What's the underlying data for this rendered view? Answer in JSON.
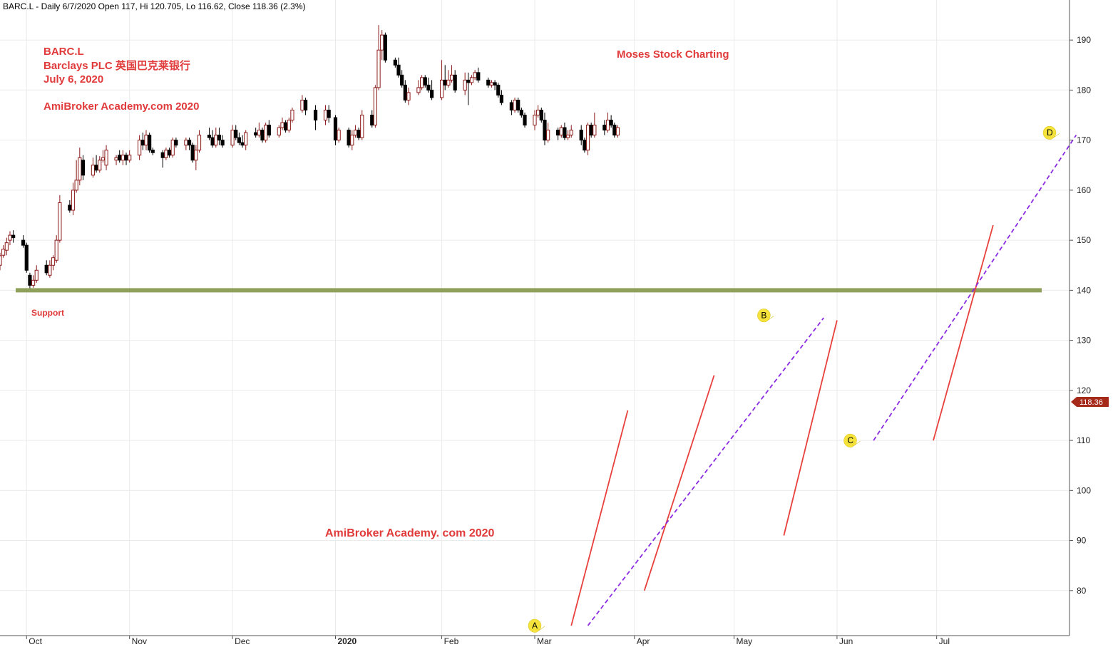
{
  "header": {
    "text": "BARC.L - Daily 6/7/2020 Open 117, Hi 120.705, Lo 116.62, Close 118.36 (2.3%)"
  },
  "annotations": {
    "symbol": "BARC.L",
    "company": "Barclays PLC 英国巴克莱银行",
    "date": "July 6, 2020",
    "brand_top": "AmiBroker Academy.com  2020",
    "center_title": "Moses Stock Charting",
    "brand_bottom": "AmiBroker Academy. com  2020",
    "support_label": "Support"
  },
  "colors": {
    "up_candle": "#8b1a1a",
    "down_candle": "#000000",
    "support_line": "#8fa05a",
    "trend_red": "#e8403c",
    "trend_purple": "#8a2be2",
    "annotation_red": "#e03a3a",
    "marker_fill": "#f5e23a",
    "price_tag": "#a52a1a"
  },
  "chart_data": {
    "type": "candlestick",
    "title": "",
    "xlabel": "",
    "ylabel": "",
    "ylim": [
      71,
      198
    ],
    "y_ticks": [
      80,
      90,
      100,
      110,
      120,
      130,
      140,
      150,
      160,
      170,
      180,
      190
    ],
    "x_months": [
      {
        "label": "Oct",
        "date": "2019-10-01"
      },
      {
        "label": "Nov",
        "date": "2019-11-01"
      },
      {
        "label": "Dec",
        "date": "2019-12-02"
      },
      {
        "label": "2020",
        "date": "2020-01-02"
      },
      {
        "label": "Feb",
        "date": "2020-02-03"
      },
      {
        "label": "Mar",
        "date": "2020-03-02"
      },
      {
        "label": "Apr",
        "date": "2020-04-01"
      },
      {
        "label": "May",
        "date": "2020-05-01"
      },
      {
        "label": "Jun",
        "date": "2020-06-01"
      },
      {
        "label": "Jul",
        "date": "2020-07-01"
      }
    ],
    "last_close": "118.36",
    "support": {
      "value": 140,
      "label": "Support"
    },
    "candles": [
      [
        "2019-09-23",
        145.0,
        146.9,
        144.0,
        147.5
      ],
      [
        "2019-09-24",
        147.0,
        148.2,
        146.5,
        149.0
      ],
      [
        "2019-09-25",
        148.0,
        149.5,
        147.0,
        150.5
      ],
      [
        "2019-09-26",
        150.0,
        151.0,
        149.0,
        151.8
      ],
      [
        "2019-09-27",
        151.0,
        150.5,
        149.5,
        152.0
      ],
      [
        "2019-09-30",
        150.0,
        149.0,
        148.5,
        151.0
      ],
      [
        "2019-10-01",
        149.0,
        144.0,
        143.5,
        149.5
      ],
      [
        "2019-10-02",
        143.0,
        141.0,
        140.0,
        143.5
      ],
      [
        "2019-10-03",
        141.0,
        142.0,
        140.5,
        143.0
      ],
      [
        "2019-10-04",
        142.0,
        144.0,
        141.5,
        145.0
      ],
      [
        "2019-10-07",
        145.0,
        143.5,
        143.0,
        146.0
      ],
      [
        "2019-10-08",
        143.0,
        145.0,
        142.5,
        146.0
      ],
      [
        "2019-10-09",
        145.0,
        146.5,
        144.0,
        147.0
      ],
      [
        "2019-10-10",
        146.0,
        150.0,
        145.5,
        151.0
      ],
      [
        "2019-10-11",
        150.0,
        157.5,
        149.5,
        159.0
      ],
      [
        "2019-10-14",
        157.0,
        156.0,
        155.5,
        158.0
      ],
      [
        "2019-10-15",
        156.0,
        160.0,
        155.0,
        161.5
      ],
      [
        "2019-10-16",
        160.0,
        162.0,
        159.5,
        166.0
      ],
      [
        "2019-10-17",
        162.0,
        166.5,
        161.0,
        168.5
      ],
      [
        "2019-10-18",
        166.0,
        163.0,
        162.0,
        167.0
      ],
      [
        "2019-10-21",
        163.0,
        165.0,
        162.5,
        166.5
      ],
      [
        "2019-10-22",
        165.0,
        164.0,
        163.5,
        167.0
      ],
      [
        "2019-10-23",
        164.0,
        166.0,
        163.5,
        166.8
      ],
      [
        "2019-10-24",
        166.0,
        166.5,
        165.5,
        168.0
      ],
      [
        "2019-10-25",
        165.0,
        168.0,
        164.0,
        169.0
      ],
      [
        "2019-10-28",
        166.0,
        166.5,
        165.0,
        167.0
      ],
      [
        "2019-10-29",
        167.0,
        166.0,
        165.5,
        168.0
      ],
      [
        "2019-10-30",
        166.0,
        167.0,
        165.0,
        168.0
      ],
      [
        "2019-10-31",
        167.0,
        166.0,
        165.0,
        167.5
      ],
      [
        "2019-11-01",
        166.0,
        167.0,
        165.5,
        168.0
      ],
      [
        "2019-11-04",
        167.0,
        170.0,
        166.0,
        171.0
      ],
      [
        "2019-11-05",
        170.0,
        169.0,
        168.0,
        171.5
      ],
      [
        "2019-11-06",
        169.0,
        171.0,
        168.0,
        172.0
      ],
      [
        "2019-11-07",
        171.0,
        168.0,
        167.5,
        171.5
      ],
      [
        "2019-11-08",
        168.0,
        167.5,
        167.0,
        168.5
      ],
      [
        "2019-11-11",
        167.5,
        166.5,
        164.5,
        168.0
      ],
      [
        "2019-11-12",
        166.5,
        168.0,
        166.0,
        168.5
      ],
      [
        "2019-11-13",
        168.0,
        167.0,
        166.5,
        168.5
      ],
      [
        "2019-11-14",
        167.0,
        170.0,
        166.5,
        170.5
      ],
      [
        "2019-11-15",
        170.0,
        169.0,
        168.5,
        170.5
      ],
      [
        "2019-11-18",
        169.0,
        170.0,
        168.0,
        170.5
      ],
      [
        "2019-11-19",
        170.0,
        169.0,
        168.0,
        170.5
      ],
      [
        "2019-11-20",
        169.0,
        166.0,
        165.5,
        169.5
      ],
      [
        "2019-11-21",
        166.0,
        168.0,
        164.0,
        169.0
      ],
      [
        "2019-11-22",
        168.0,
        171.0,
        167.5,
        172.0
      ],
      [
        "2019-11-25",
        171.0,
        170.5,
        170.0,
        172.5
      ],
      [
        "2019-11-26",
        170.5,
        169.0,
        168.5,
        172.0
      ],
      [
        "2019-11-27",
        169.0,
        171.0,
        168.5,
        172.5
      ],
      [
        "2019-11-28",
        171.0,
        170.0,
        169.0,
        172.5
      ],
      [
        "2019-11-29",
        170.0,
        169.0,
        168.5,
        171.0
      ],
      [
        "2019-12-02",
        169.0,
        172.0,
        168.5,
        173.0
      ],
      [
        "2019-12-03",
        172.0,
        170.5,
        170.0,
        173.0
      ],
      [
        "2019-12-04",
        170.5,
        169.5,
        169.0,
        171.5
      ],
      [
        "2019-12-05",
        169.5,
        169.0,
        168.5,
        171.0
      ],
      [
        "2019-12-06",
        169.0,
        171.5,
        168.0,
        172.0
      ],
      [
        "2019-12-09",
        171.5,
        171.0,
        170.5,
        172.5
      ],
      [
        "2019-12-10",
        171.0,
        172.0,
        170.5,
        173.5
      ],
      [
        "2019-12-11",
        172.0,
        170.0,
        169.5,
        172.5
      ],
      [
        "2019-12-12",
        170.0,
        173.0,
        169.5,
        173.5
      ],
      [
        "2019-12-13",
        173.0,
        171.0,
        170.5,
        174.0
      ],
      [
        "2019-12-16",
        171.0,
        172.5,
        170.5,
        173.0
      ],
      [
        "2019-12-17",
        172.5,
        173.5,
        172.0,
        174.5
      ],
      [
        "2019-12-18",
        173.5,
        172.0,
        171.5,
        174.0
      ],
      [
        "2019-12-19",
        172.0,
        174.0,
        171.5,
        174.5
      ],
      [
        "2019-12-20",
        174.0,
        176.0,
        173.5,
        176.5
      ],
      [
        "2019-12-23",
        176.0,
        178.0,
        175.5,
        179.0
      ],
      [
        "2019-12-24",
        178.0,
        176.0,
        175.0,
        178.5
      ],
      [
        "2019-12-27",
        176.0,
        174.0,
        172.0,
        177.0
      ],
      [
        "2019-12-30",
        174.0,
        176.0,
        173.0,
        177.0
      ],
      [
        "2019-12-31",
        176.0,
        174.5,
        173.5,
        177.0
      ],
      [
        "2020-01-02",
        174.5,
        170.0,
        169.0,
        175.0
      ],
      [
        "2020-01-03",
        170.0,
        172.0,
        169.5,
        172.5
      ],
      [
        "2020-01-06",
        172.0,
        169.0,
        168.5,
        172.5
      ],
      [
        "2020-01-07",
        169.0,
        171.0,
        168.0,
        172.0
      ],
      [
        "2020-01-08",
        171.0,
        172.0,
        170.5,
        173.0
      ],
      [
        "2020-01-09",
        172.0,
        170.5,
        170.0,
        172.5
      ],
      [
        "2020-01-10",
        170.5,
        175.0,
        170.0,
        176.0
      ],
      [
        "2020-01-13",
        175.0,
        173.0,
        172.5,
        176.0
      ],
      [
        "2020-01-14",
        173.0,
        180.5,
        172.5,
        181.0
      ],
      [
        "2020-01-15",
        180.5,
        188.0,
        180.0,
        193.0
      ],
      [
        "2020-01-16",
        188.0,
        191.0,
        186.0,
        192.0
      ],
      [
        "2020-01-17",
        191.0,
        186.0,
        185.5,
        191.5
      ],
      [
        "2020-01-20",
        186.0,
        185.0,
        184.5,
        186.5
      ],
      [
        "2020-01-21",
        185.0,
        183.0,
        182.5,
        186.5
      ],
      [
        "2020-01-22",
        183.0,
        181.0,
        180.5,
        184.0
      ],
      [
        "2020-01-23",
        181.0,
        178.0,
        177.5,
        182.0
      ],
      [
        "2020-01-24",
        178.0,
        179.5,
        177.0,
        180.5
      ],
      [
        "2020-01-27",
        179.5,
        180.5,
        179.0,
        182.0
      ],
      [
        "2020-01-28",
        180.5,
        182.5,
        180.0,
        183.0
      ],
      [
        "2020-01-29",
        182.5,
        181.0,
        180.5,
        183.0
      ],
      [
        "2020-01-30",
        181.0,
        180.0,
        179.5,
        182.5
      ],
      [
        "2020-01-31",
        180.0,
        178.5,
        178.0,
        182.0
      ],
      [
        "2020-02-03",
        178.5,
        182.0,
        178.0,
        186.0
      ],
      [
        "2020-02-04",
        182.0,
        181.0,
        180.0,
        185.0
      ],
      [
        "2020-02-05",
        181.0,
        182.0,
        180.5,
        184.0
      ],
      [
        "2020-02-06",
        182.0,
        183.0,
        181.5,
        185.0
      ],
      [
        "2020-02-07",
        183.0,
        180.0,
        179.5,
        184.0
      ],
      [
        "2020-02-10",
        180.0,
        182.0,
        179.0,
        183.5
      ],
      [
        "2020-02-11",
        182.0,
        181.5,
        177.0,
        183.5
      ],
      [
        "2020-02-12",
        181.5,
        182.5,
        181.0,
        183.0
      ],
      [
        "2020-02-13",
        182.5,
        183.5,
        182.0,
        184.0
      ],
      [
        "2020-02-14",
        183.5,
        182.0,
        181.5,
        184.5
      ],
      [
        "2020-02-17",
        182.0,
        181.0,
        180.5,
        182.5
      ],
      [
        "2020-02-18",
        181.0,
        181.5,
        180.5,
        182.0
      ],
      [
        "2020-02-19",
        181.5,
        181.0,
        180.0,
        182.0
      ],
      [
        "2020-02-20",
        181.0,
        179.0,
        178.5,
        181.5
      ],
      [
        "2020-02-21",
        179.0,
        177.5,
        177.0,
        180.0
      ],
      [
        "2020-02-24",
        177.5,
        176.0,
        175.0,
        178.0
      ],
      [
        "2020-02-25",
        176.0,
        178.0,
        175.5,
        178.5
      ],
      [
        "2020-02-26",
        178.0,
        176.0,
        175.5,
        178.5
      ],
      [
        "2020-02-27",
        176.0,
        175.0,
        174.5,
        176.5
      ],
      [
        "2020-02-28",
        175.0,
        173.0,
        172.5,
        175.5
      ],
      [
        "2020-03-02",
        173.0,
        175.0,
        172.0,
        176.0
      ],
      [
        "2020-03-03",
        175.0,
        176.0,
        174.5,
        177.0
      ],
      [
        "2020-03-04",
        176.0,
        174.0,
        173.5,
        176.5
      ],
      [
        "2020-03-05",
        174.0,
        170.0,
        169.0,
        175.5
      ],
      [
        "2020-03-06",
        170.0,
        172.0,
        169.5,
        173.5
      ],
      [
        "2020-03-09",
        172.0,
        171.0,
        170.0,
        172.5
      ],
      [
        "2020-03-10",
        171.0,
        172.5,
        170.5,
        173.0
      ],
      [
        "2020-03-11",
        172.5,
        170.5,
        170.0,
        173.5
      ],
      [
        "2020-03-12",
        170.5,
        171.0,
        170.0,
        172.0
      ],
      [
        "2020-03-13",
        171.0,
        172.0,
        170.5,
        173.0
      ],
      [
        "2020-03-16",
        172.0,
        170.0,
        169.0,
        173.0
      ],
      [
        "2020-03-17",
        170.0,
        168.0,
        167.5,
        170.5
      ],
      [
        "2020-03-18",
        168.0,
        173.0,
        167.0,
        173.5
      ],
      [
        "2020-03-19",
        173.0,
        171.0,
        170.5,
        173.5
      ],
      [
        "2020-03-20",
        171.0,
        173.0,
        170.5,
        175.5
      ],
      [
        "2020-03-23",
        173.0,
        172.0,
        171.0,
        174.0
      ],
      [
        "2020-03-24",
        172.0,
        174.0,
        171.5,
        175.5
      ],
      [
        "2020-03-25",
        174.0,
        173.0,
        172.5,
        175.0
      ],
      [
        "2020-03-26",
        173.0,
        171.0,
        170.5,
        173.5
      ],
      [
        "2020-03-27",
        171.0,
        172.5,
        170.5,
        173.0
      ]
    ],
    "markers": [
      {
        "label": "A",
        "date": "2020-03-02",
        "value": 73
      },
      {
        "label": "B",
        "date": "2020-05-10",
        "value": 135
      },
      {
        "label": "C",
        "date": "2020-06-05",
        "value": 110
      },
      {
        "label": "D",
        "date": "2020-08-04",
        "value": 171.5
      }
    ]
  }
}
